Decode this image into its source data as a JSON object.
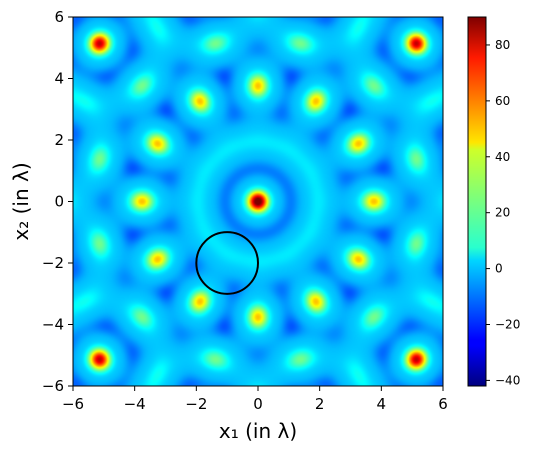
{
  "chart_data": {
    "type": "heatmap",
    "title": "",
    "xlabel": "x₁ (in λ)",
    "ylabel": "x₂ (in λ)",
    "xlim": [
      -6,
      6
    ],
    "ylim": [
      -6,
      6
    ],
    "x_ticks": [
      "−6",
      "−4",
      "−2",
      "0",
      "2",
      "4",
      "6"
    ],
    "y_ticks": [
      "−6",
      "−4",
      "−2",
      "0",
      "2",
      "4",
      "6"
    ],
    "x_tick_values": [
      -6,
      -4,
      -2,
      0,
      2,
      4,
      6
    ],
    "y_tick_values": [
      -6,
      -4,
      -2,
      0,
      2,
      4,
      6
    ],
    "colormap": "jet",
    "colorbar": {
      "vmin": -42,
      "vmax": 90,
      "ticks": [
        "−40",
        "−20",
        "0",
        "20",
        "40",
        "60",
        "80"
      ],
      "tick_values": [
        -40,
        -20,
        0,
        20,
        40,
        60,
        80
      ]
    },
    "annotation_circle": {
      "center": [
        -1,
        -2
      ],
      "radius": 1
    },
    "grid": false,
    "legend": "none"
  }
}
